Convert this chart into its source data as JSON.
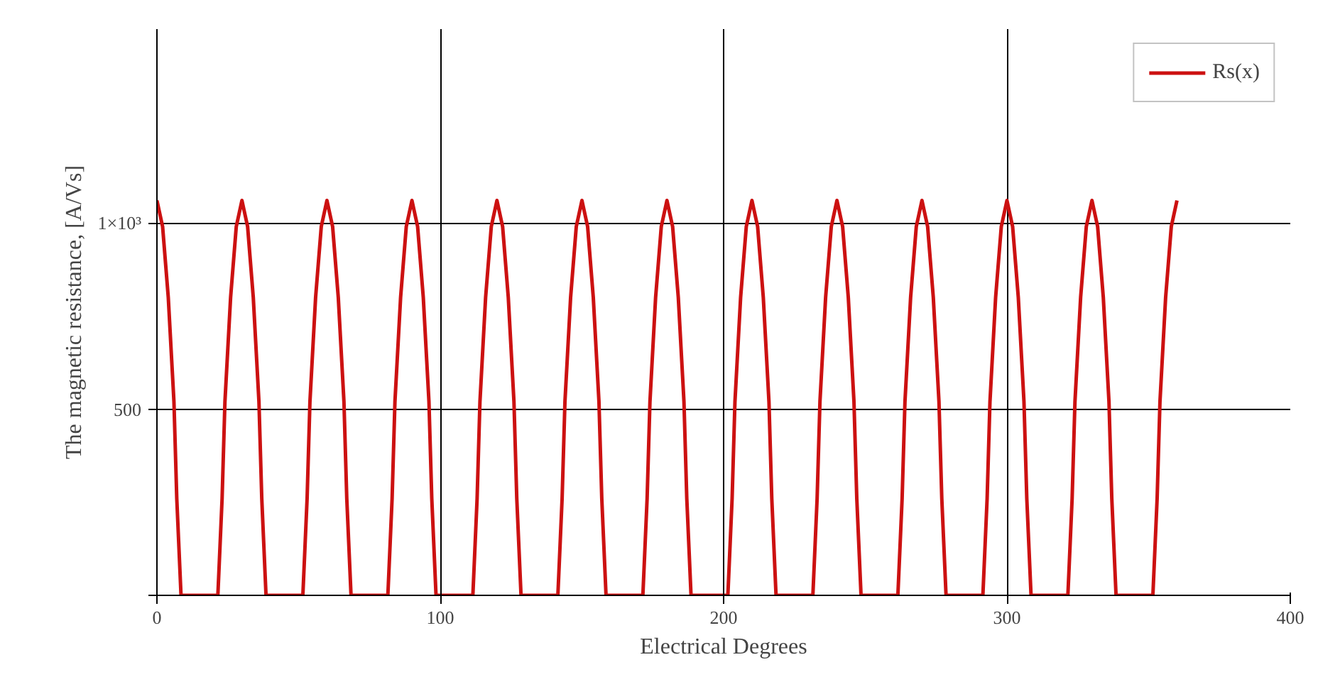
{
  "chart_data": {
    "type": "line",
    "xlabel": "Electrical Degrees",
    "ylabel": "The magnetic resistance, [A/Vs]",
    "xlim": [
      0,
      400
    ],
    "ylim": [
      0,
      1520
    ],
    "xticks": [
      0,
      100,
      200,
      300,
      400
    ],
    "yticks": [
      {
        "value": 0,
        "label": null
      },
      500,
      {
        "value": 1000,
        "label": "1×10³"
      }
    ],
    "grid": true,
    "legend": "top right",
    "marker": "none",
    "line_style": "solid",
    "series": [
      {
        "name": "Rs(x)",
        "color": "#cc1111",
        "x": [
          0,
          2,
          4,
          6,
          7,
          8.5,
          21.5,
          23,
          24,
          26,
          28,
          30,
          32,
          34,
          36,
          37,
          38.5,
          51.5,
          53,
          54,
          56,
          58,
          60,
          62,
          64,
          66,
          67,
          68.5,
          81.5,
          83,
          84,
          86,
          88,
          90,
          92,
          94,
          96,
          97,
          98.5,
          111.5,
          113,
          114,
          116,
          118,
          120,
          122,
          124,
          126,
          127,
          128.5,
          141.5,
          143,
          144,
          146,
          148,
          150,
          152,
          154,
          156,
          157,
          158.5,
          171.5,
          173,
          174,
          176,
          178,
          180,
          182,
          184,
          186,
          187,
          188.5,
          201.5,
          203,
          204,
          206,
          208,
          210,
          212,
          214,
          216,
          217,
          218.5,
          231.5,
          233,
          234,
          236,
          238,
          240,
          242,
          244,
          246,
          247,
          248.5,
          261.5,
          263,
          264,
          266,
          268,
          270,
          272,
          274,
          276,
          277,
          278.5,
          291.5,
          293,
          294,
          296,
          298,
          300,
          302,
          304,
          306,
          307,
          308.5,
          321.5,
          323,
          324,
          326,
          328,
          330,
          332,
          334,
          336,
          337,
          338.5,
          351.5,
          353,
          354,
          356,
          358,
          360
        ],
        "values": [
          1060,
          990,
          800,
          520,
          260,
          0,
          0,
          260,
          520,
          800,
          990,
          1060,
          990,
          800,
          520,
          260,
          0,
          0,
          260,
          520,
          800,
          990,
          1060,
          990,
          800,
          520,
          260,
          0,
          0,
          260,
          520,
          800,
          990,
          1060,
          990,
          800,
          520,
          260,
          0,
          0,
          260,
          520,
          800,
          990,
          1060,
          990,
          800,
          520,
          260,
          0,
          0,
          260,
          520,
          800,
          990,
          1060,
          990,
          800,
          520,
          260,
          0,
          0,
          260,
          520,
          800,
          990,
          1060,
          990,
          800,
          520,
          260,
          0,
          0,
          260,
          520,
          800,
          990,
          1060,
          990,
          800,
          520,
          260,
          0,
          0,
          260,
          520,
          800,
          990,
          1060,
          990,
          800,
          520,
          260,
          0,
          0,
          260,
          520,
          800,
          990,
          1060,
          990,
          800,
          520,
          260,
          0,
          0,
          260,
          520,
          800,
          990,
          1060,
          990,
          800,
          520,
          260,
          0,
          0,
          260,
          520,
          800,
          990,
          1060,
          990,
          800,
          520,
          260,
          0,
          0,
          260,
          520,
          800,
          990,
          1060
        ]
      }
    ]
  }
}
